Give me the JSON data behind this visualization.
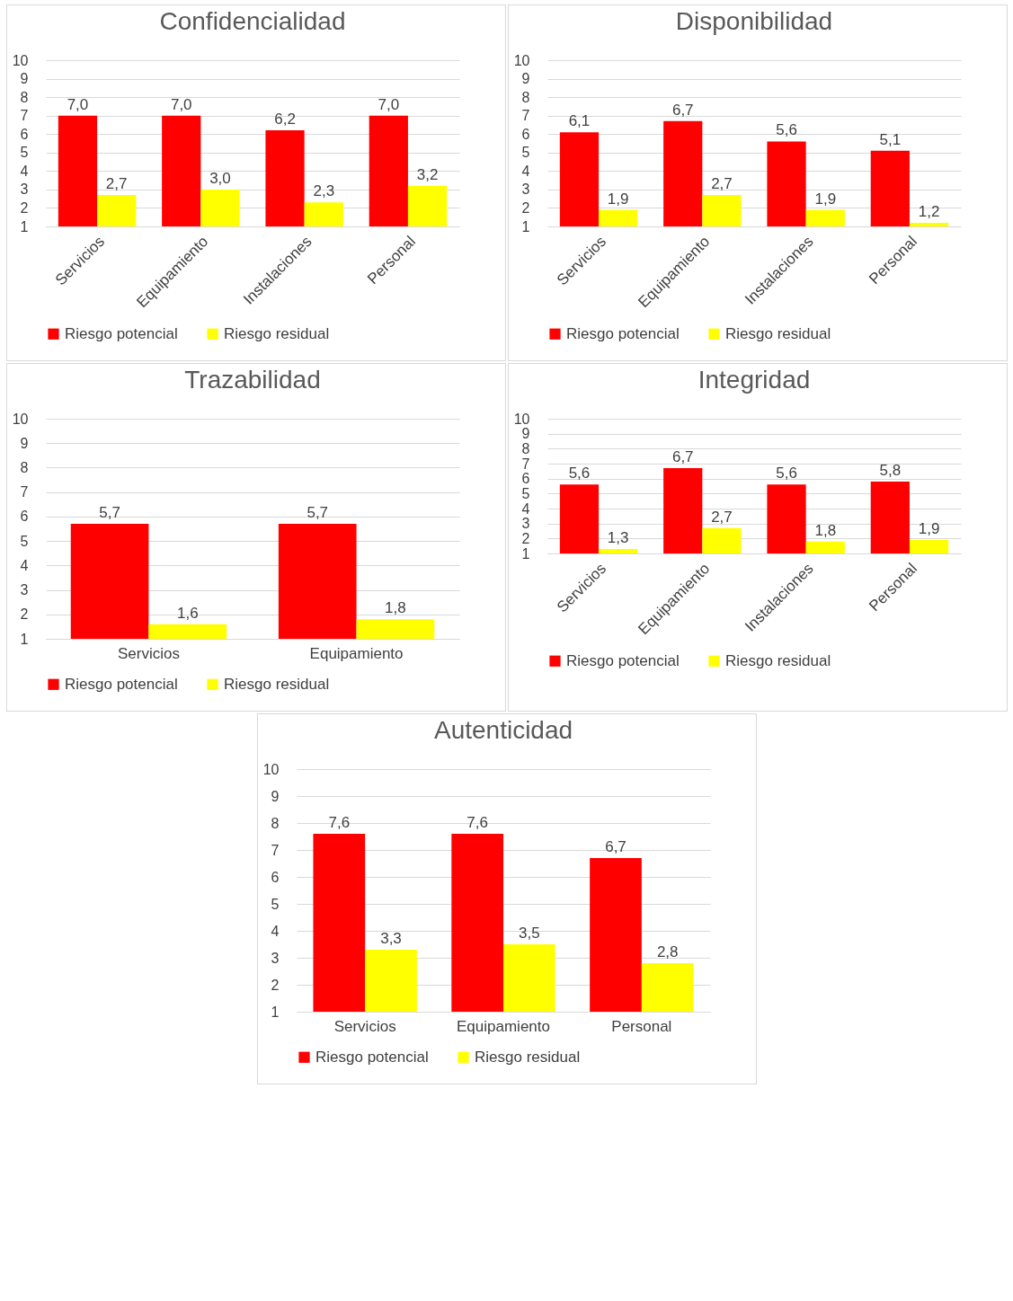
{
  "chart_data": [
    {
      "type": "bar",
      "title": "Confidencialidad",
      "categories": [
        "Servicios",
        "Equipamiento",
        "Instalaciones",
        "Personal"
      ],
      "ylim": [
        1,
        10
      ],
      "yticks": [
        1,
        2,
        3,
        4,
        5,
        6,
        7,
        8,
        9,
        10
      ],
      "grid": "y",
      "legend": "bottom",
      "series": [
        {
          "name": "Riesgo potencial",
          "color": "#ff0000",
          "values": [
            7.0,
            7.0,
            6.2,
            7.0
          ],
          "value_labels": [
            "7,0",
            "7,0",
            "6,2",
            "7,0"
          ]
        },
        {
          "name": "Riesgo residual",
          "color": "#ffff00",
          "values": [
            2.7,
            3.0,
            2.3,
            3.2
          ],
          "value_labels": [
            "2,7",
            "3,0",
            "2,3",
            "3,2"
          ]
        }
      ]
    },
    {
      "type": "bar",
      "title": "Disponibilidad",
      "categories": [
        "Servicios",
        "Equipamiento",
        "Instalaciones",
        "Personal"
      ],
      "ylim": [
        1,
        10
      ],
      "yticks": [
        1,
        2,
        3,
        4,
        5,
        6,
        7,
        8,
        9,
        10
      ],
      "grid": "y",
      "legend": "bottom",
      "series": [
        {
          "name": "Riesgo potencial",
          "color": "#ff0000",
          "values": [
            6.1,
            6.7,
            5.6,
            5.1
          ],
          "value_labels": [
            "6,1",
            "6,7",
            "5,6",
            "5,1"
          ]
        },
        {
          "name": "Riesgo residual",
          "color": "#ffff00",
          "values": [
            1.9,
            2.7,
            1.9,
            1.2
          ],
          "value_labels": [
            "1,9",
            "2,7",
            "1,9",
            "1,2"
          ]
        }
      ]
    },
    {
      "type": "bar",
      "title": "Trazabilidad",
      "categories": [
        "Servicios",
        "Equipamiento"
      ],
      "ylim": [
        1,
        10
      ],
      "yticks": [
        1,
        2,
        3,
        4,
        5,
        6,
        7,
        8,
        9,
        10
      ],
      "grid": "y",
      "legend": "bottom",
      "series": [
        {
          "name": "Riesgo potencial",
          "color": "#ff0000",
          "values": [
            5.7,
            5.7
          ],
          "value_labels": [
            "5,7",
            "5,7"
          ]
        },
        {
          "name": "Riesgo residual",
          "color": "#ffff00",
          "values": [
            1.6,
            1.8
          ],
          "value_labels": [
            "1,6",
            "1,8"
          ]
        }
      ]
    },
    {
      "type": "bar",
      "title": "Integridad",
      "categories": [
        "Servicios",
        "Equipamiento",
        "Instalaciones",
        "Personal"
      ],
      "ylim": [
        1,
        10
      ],
      "yticks": [
        1,
        2,
        3,
        4,
        5,
        6,
        7,
        8,
        9,
        10
      ],
      "grid": "y",
      "legend": "bottom",
      "series": [
        {
          "name": "Riesgo potencial",
          "color": "#ff0000",
          "values": [
            5.6,
            6.7,
            5.6,
            5.8
          ],
          "value_labels": [
            "5,6",
            "6,7",
            "5,6",
            "5,8"
          ]
        },
        {
          "name": "Riesgo residual",
          "color": "#ffff00",
          "values": [
            1.3,
            2.7,
            1.8,
            1.9
          ],
          "value_labels": [
            "1,3",
            "2,7",
            "1,8",
            "1,9"
          ]
        }
      ]
    },
    {
      "type": "bar",
      "title": "Autenticidad",
      "categories": [
        "Servicios",
        "Equipamiento",
        "Personal"
      ],
      "ylim": [
        1,
        10
      ],
      "yticks": [
        1,
        2,
        3,
        4,
        5,
        6,
        7,
        8,
        9,
        10
      ],
      "grid": "y",
      "legend": "bottom",
      "series": [
        {
          "name": "Riesgo potencial",
          "color": "#ff0000",
          "values": [
            7.6,
            7.6,
            6.7
          ],
          "value_labels": [
            "7,6",
            "7,6",
            "6,7"
          ]
        },
        {
          "name": "Riesgo residual",
          "color": "#ffff00",
          "values": [
            3.3,
            3.5,
            2.8
          ],
          "value_labels": [
            "3,3",
            "3,5",
            "2,8"
          ]
        }
      ]
    }
  ]
}
